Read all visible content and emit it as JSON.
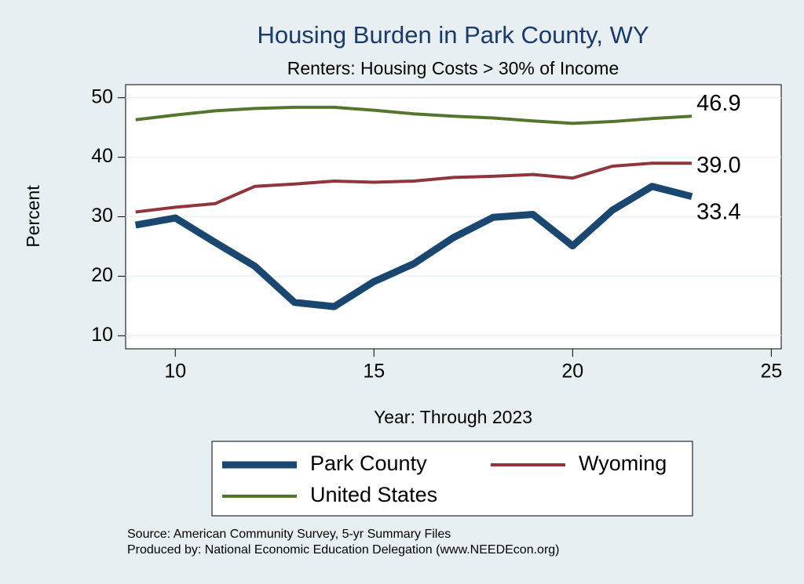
{
  "chart_data": {
    "type": "line",
    "title": "Housing Burden in Park County, WY",
    "subtitle": "Renters: Housing Costs > 30% of Income",
    "x_label": "Year: Through 2023",
    "y_label": "Percent",
    "x": [
      9,
      10,
      11,
      12,
      13,
      14,
      15,
      16,
      17,
      18,
      19,
      20,
      21,
      22,
      23
    ],
    "series": [
      {
        "name": "Park County",
        "color": "#1a476f",
        "values": [
          28.6,
          29.8,
          25.7,
          21.7,
          15.6,
          14.9,
          19.1,
          22.1,
          26.5,
          29.9,
          30.4,
          25.1,
          31.1,
          35.1,
          33.4
        ],
        "value_labels": [
          null,
          null,
          null,
          null,
          null,
          null,
          null,
          null,
          null,
          null,
          null,
          null,
          null,
          null,
          "33.4"
        ]
      },
      {
        "name": "Wyoming",
        "color": "#90353b",
        "values": [
          30.8,
          31.6,
          32.2,
          35.1,
          35.5,
          36.0,
          35.8,
          36.0,
          36.6,
          36.8,
          37.1,
          36.5,
          38.5,
          39.0,
          39.0
        ],
        "value_labels": [
          null,
          null,
          null,
          null,
          null,
          null,
          null,
          null,
          null,
          null,
          null,
          null,
          null,
          null,
          "39.0"
        ]
      },
      {
        "name": "United States",
        "color": "#55752f",
        "values": [
          46.3,
          47.1,
          47.8,
          48.2,
          48.4,
          48.4,
          47.9,
          47.3,
          46.9,
          46.6,
          46.1,
          45.7,
          46.0,
          46.5,
          46.9
        ],
        "value_labels": [
          null,
          null,
          null,
          null,
          null,
          null,
          null,
          null,
          null,
          null,
          null,
          null,
          null,
          null,
          "46.9"
        ]
      }
    ],
    "xlim": [
      8.75,
      25.25
    ],
    "xticks": [
      10,
      15,
      20,
      25
    ],
    "ylim": [
      7.8,
      52.2
    ],
    "yticks": [
      10,
      20,
      30,
      40,
      50
    ],
    "grid": true,
    "source": "Source: American Community Survey, 5-yr Summary Files",
    "producer": "Produced by: National Economic Education Delegation (www.NEEDEcon.org)"
  }
}
